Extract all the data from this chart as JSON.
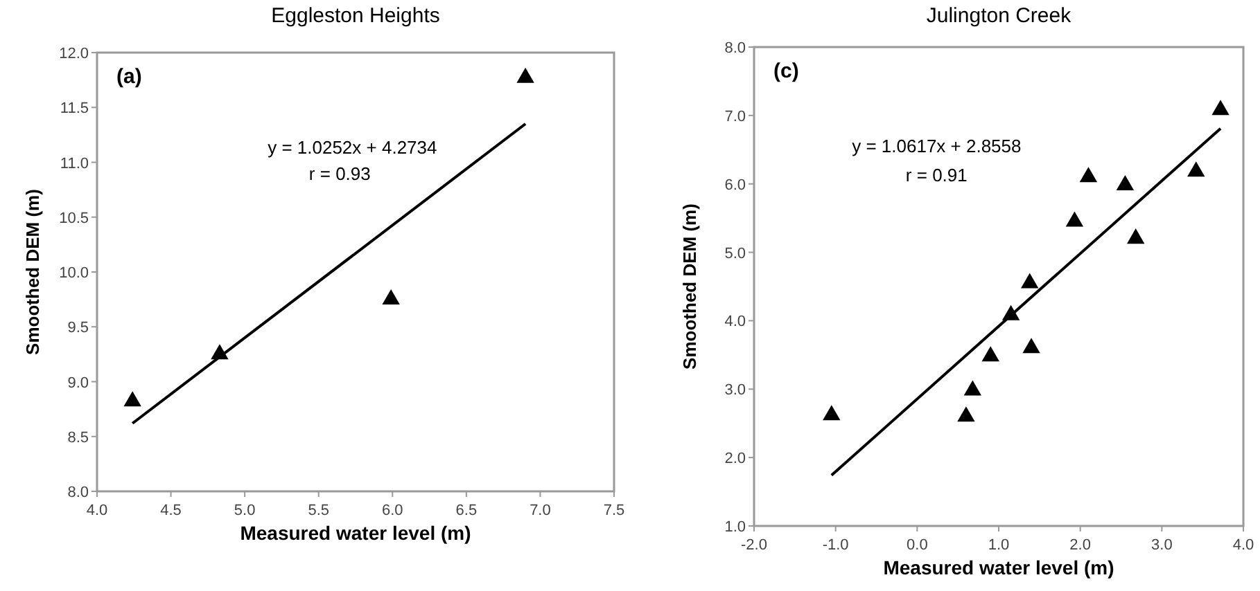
{
  "chart_data": [
    {
      "type": "scatter",
      "title": "Eggleston Heights",
      "xlabel": "Measured water level (m)",
      "ylabel": "Smoothed DEM (m)",
      "annotations": [
        "(a)",
        "y = 1.0252x + 4.2734",
        "r = 0.93"
      ],
      "grid": false,
      "xlim": [
        4,
        7.5
      ],
      "xticks": [
        {
          "value": 4,
          "label": "4.0"
        },
        4.5,
        {
          "value": 5,
          "label": "5.0"
        },
        5.5,
        {
          "value": 6,
          "label": "6.0"
        },
        6.5,
        {
          "value": 7,
          "label": "7.0"
        },
        7.5
      ],
      "ylim": [
        8,
        12
      ],
      "yticks": [
        {
          "value": 8,
          "label": "8.0"
        },
        8.5,
        {
          "value": 9,
          "label": "9.0"
        },
        9.5,
        {
          "value": 10,
          "label": "10.0"
        },
        10.5,
        {
          "value": 11,
          "label": "11.0"
        },
        11.5,
        {
          "value": 12,
          "label": "12.0"
        }
      ],
      "series": [
        {
          "color": "#000000",
          "marker": "triangle",
          "x": [
            4.24,
            4.83,
            5.99,
            6.9
          ],
          "values": [
            8.82,
            9.25,
            9.75,
            11.77
          ]
        },
        {
          "type": "line",
          "color": "#000000",
          "marker": "none",
          "x": [
            4.24,
            6.9
          ],
          "values": [
            8.62,
            11.35
          ]
        }
      ]
    },
    {
      "type": "scatter",
      "title": "Julington Creek",
      "xlabel": "Measured water level (m)",
      "ylabel": "Smoothed DEM (m)",
      "annotations": [
        "(c)",
        "y = 1.0617x + 2.8558",
        "r = 0.91"
      ],
      "grid": false,
      "xlim": [
        -2,
        4
      ],
      "xticks": [
        {
          "value": -2,
          "label": "-2.0"
        },
        {
          "value": -1,
          "label": "-1.0"
        },
        {
          "value": 0,
          "label": "0.0"
        },
        {
          "value": 1,
          "label": "1.0"
        },
        {
          "value": 2,
          "label": "2.0"
        },
        {
          "value": 3,
          "label": "3.0"
        },
        {
          "value": 4,
          "label": "4.0"
        }
      ],
      "ylim": [
        1,
        8
      ],
      "yticks": [
        {
          "value": 1,
          "label": "1.0"
        },
        {
          "value": 2,
          "label": "2.0"
        },
        {
          "value": 3,
          "label": "3.0"
        },
        {
          "value": 4,
          "label": "4.0"
        },
        {
          "value": 5,
          "label": "5.0"
        },
        {
          "value": 6,
          "label": "6.0"
        },
        {
          "value": 7,
          "label": "7.0"
        },
        {
          "value": 8,
          "label": "8.0"
        }
      ],
      "series": [
        {
          "color": "#000000",
          "marker": "triangle",
          "x": [
            -1.05,
            0.6,
            0.68,
            0.9,
            1.15,
            1.38,
            1.4,
            1.93,
            2.1,
            2.55,
            2.68,
            3.42,
            3.72
          ],
          "values": [
            2.62,
            2.6,
            2.98,
            3.48,
            4.08,
            4.55,
            3.6,
            5.45,
            6.1,
            5.98,
            5.2,
            6.18,
            7.08
          ]
        },
        {
          "type": "line",
          "color": "#000000",
          "marker": "none",
          "x": [
            -1.05,
            3.72
          ],
          "values": [
            1.74,
            6.81
          ]
        }
      ]
    }
  ]
}
